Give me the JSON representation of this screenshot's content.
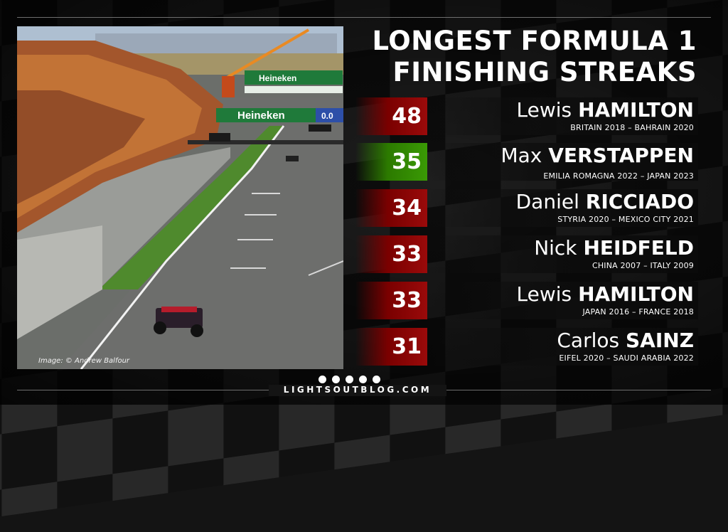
{
  "title": {
    "line1": "LONGEST FORMULA 1",
    "line2": "FINISHING STREAKS"
  },
  "photo": {
    "caption": "Image: © Andrew Balfour",
    "banner_text": "Heineken",
    "banner_suffix": "0.0"
  },
  "streaks": [
    {
      "count": "48",
      "first": "Lewis",
      "last": "HAMILTON",
      "span": "BRITAIN 2018 – BAHRAIN 2020",
      "color": "#9a0a0a"
    },
    {
      "count": "35",
      "first": "Max",
      "last": "VERSTAPPEN",
      "span": "EMILIA ROMAGNA 2022 – JAPAN 2023",
      "color": "#3a9a05"
    },
    {
      "count": "34",
      "first": "Daniel",
      "last": "RICCIADO",
      "span": "STYRIA 2020 – MEXICO CITY 2021",
      "color": "#9a0a0a"
    },
    {
      "count": "33",
      "first": "Nick",
      "last": "HEIDFELD",
      "span": "CHINA 2007 – ITALY 2009",
      "color": "#9a0a0a"
    },
    {
      "count": "33",
      "first": "Lewis",
      "last": "HAMILTON",
      "span": "JAPAN 2016 – FRANCE 2018",
      "color": "#9a0a0a"
    },
    {
      "count": "31",
      "first": "Carlos",
      "last": "SAINZ",
      "span": "EIFEL 2020 – SAUDI ARABIA 2022",
      "color": "#9a0a0a"
    }
  ],
  "footer": {
    "site": "LIGHTSOUTBLOG.COM"
  }
}
